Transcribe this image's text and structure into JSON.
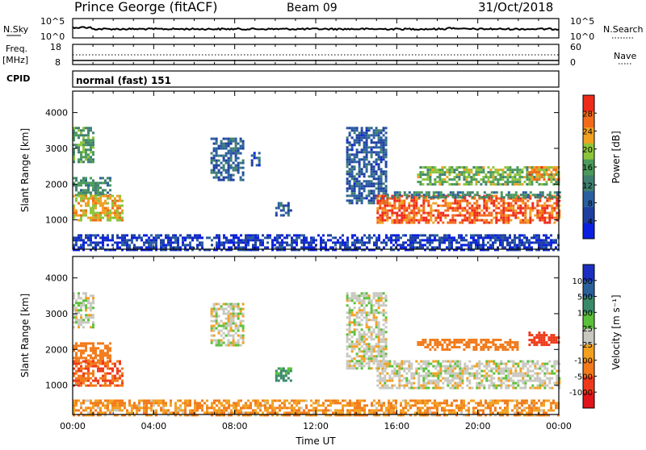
{
  "header": {
    "station": "Prince George (fitACF)",
    "beam": "Beam 09",
    "date": "31/Oct/2018"
  },
  "noise_panel": {
    "left_label": "N.Sky",
    "left_top_tick": "10^5",
    "left_bottom_tick": "10^0",
    "right_top_tick": "10^5",
    "right_bottom_tick": "10^0",
    "right_label": "N.Search"
  },
  "freq_panel": {
    "label_line1": "Freq.",
    "label_line2": "[MHz]",
    "top_tick": "18",
    "bottom_tick": "8",
    "right_top_tick": "60",
    "right_bottom_tick": "0",
    "right_label": "Nave"
  },
  "cpid_panel": {
    "label": "CPID",
    "mode_text": "normal (fast) 151"
  },
  "colors": {
    "power_scale": [
      "#0a1fe0",
      "#1e3fa0",
      "#2a5fa0",
      "#3f7f70",
      "#4a9a5a",
      "#8cc43a",
      "#f2a020",
      "#f26a1a",
      "#ee2a1a"
    ],
    "velocity_scale": [
      "#1a2fc0",
      "#2a5f9a",
      "#3a8a6a",
      "#5ac03a",
      "#c8c8c0",
      "#f2a020",
      "#f27a1a",
      "#ee3a1a",
      "#e0141a"
    ]
  },
  "chart_data": [
    {
      "type": "heatmap",
      "name": "power",
      "xlabel": "",
      "ylabel": "Slant Range [km]",
      "x_range": [
        "00:00",
        "24:00"
      ],
      "y_ticks": [
        "1000",
        "2000",
        "3000",
        "4000"
      ],
      "y_range_km": [
        180,
        4600
      ],
      "colorbar_label": "Power [dB]",
      "colorbar_ticks": [
        "4",
        "8",
        "12",
        "16",
        "20",
        "24",
        "28"
      ],
      "regions": [
        {
          "t": [
            0.0,
            1.0
          ],
          "r": [
            2600,
            3600
          ],
          "v": 16
        },
        {
          "t": [
            0.0,
            1.8
          ],
          "r": [
            1700,
            2200
          ],
          "v": 14
        },
        {
          "t": [
            0.0,
            2.5
          ],
          "r": [
            1000,
            1700
          ],
          "v": 22
        },
        {
          "t": [
            6.8,
            8.4
          ],
          "r": [
            2100,
            3300
          ],
          "v": 10
        },
        {
          "t": [
            8.8,
            9.2
          ],
          "r": [
            2500,
            2900
          ],
          "v": 8
        },
        {
          "t": [
            10.0,
            10.8
          ],
          "r": [
            1100,
            1500
          ],
          "v": 9
        },
        {
          "t": [
            13.5,
            15.5
          ],
          "r": [
            1500,
            3600
          ],
          "v": 9
        },
        {
          "t": [
            15.0,
            24.0
          ],
          "r": [
            900,
            1700
          ],
          "v": 27
        },
        {
          "t": [
            15.5,
            24.0
          ],
          "r": [
            1600,
            1800
          ],
          "v": 14
        },
        {
          "t": [
            17.0,
            24.0
          ],
          "r": [
            2000,
            2500
          ],
          "v": 18
        },
        {
          "t": [
            22.5,
            24.0
          ],
          "r": [
            2100,
            2500
          ],
          "v": 24
        },
        {
          "t": [
            0.0,
            24.0
          ],
          "r": [
            180,
            600
          ],
          "v": 6
        }
      ]
    },
    {
      "type": "heatmap",
      "name": "velocity",
      "xlabel": "Time UT",
      "ylabel": "Slant Range [km]",
      "x_ticks": [
        "00:00",
        "04:00",
        "08:00",
        "12:00",
        "16:00",
        "20:00",
        "00:00"
      ],
      "y_ticks": [
        "1000",
        "2000",
        "3000",
        "4000"
      ],
      "y_range_km": [
        180,
        4600
      ],
      "colorbar_label": "Velocity [m s⁻¹]",
      "colorbar_ticks": [
        "1000",
        "500",
        "100",
        "25",
        "-25",
        "-100",
        "-500",
        "-1000"
      ],
      "regions": [
        {
          "t": [
            0.0,
            1.0
          ],
          "r": [
            2600,
            3600
          ],
          "v": 0
        },
        {
          "t": [
            0.0,
            1.8
          ],
          "r": [
            1600,
            2200
          ],
          "v": -200
        },
        {
          "t": [
            0.0,
            2.5
          ],
          "r": [
            1000,
            1700
          ],
          "v": -300
        },
        {
          "t": [
            6.8,
            8.4
          ],
          "r": [
            2100,
            3300
          ],
          "v": 0
        },
        {
          "t": [
            10.0,
            10.8
          ],
          "r": [
            1100,
            1500
          ],
          "v": 80
        },
        {
          "t": [
            13.5,
            15.5
          ],
          "r": [
            1500,
            3600
          ],
          "v": 0
        },
        {
          "t": [
            15.0,
            24.0
          ],
          "r": [
            900,
            1700
          ],
          "v": 0
        },
        {
          "t": [
            17.0,
            22.0
          ],
          "r": [
            2000,
            2300
          ],
          "v": -150
        },
        {
          "t": [
            22.5,
            24.0
          ],
          "r": [
            2100,
            2500
          ],
          "v": -500
        },
        {
          "t": [
            0.0,
            24.0
          ],
          "r": [
            180,
            600
          ],
          "v": -60
        }
      ]
    }
  ]
}
